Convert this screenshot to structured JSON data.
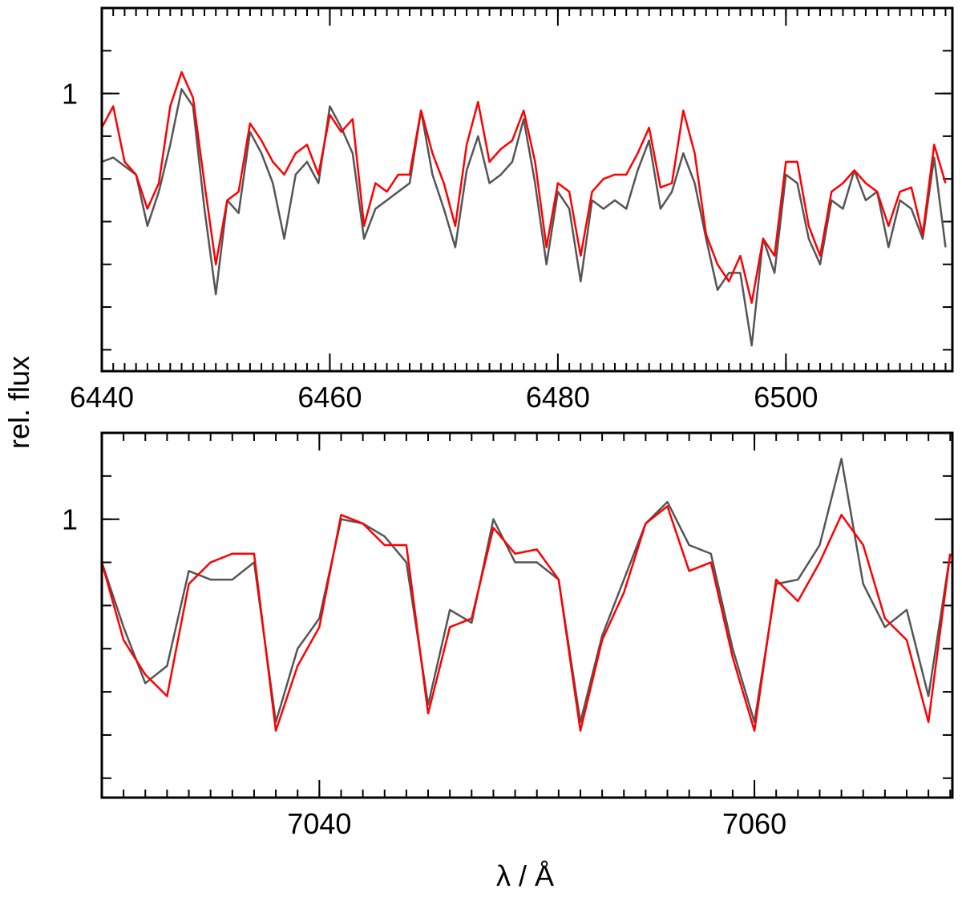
{
  "chart_data": [
    {
      "type": "line",
      "ylabel": "rel. flux",
      "x": [
        6440,
        6441,
        6442,
        6443,
        6444,
        6445,
        6446,
        6447,
        6448,
        6449,
        6450,
        6451,
        6452,
        6453,
        6454,
        6455,
        6456,
        6457,
        6458,
        6459,
        6460,
        6461,
        6462,
        6463,
        6464,
        6465,
        6466,
        6467,
        6468,
        6469,
        6470,
        6471,
        6472,
        6473,
        6474,
        6475,
        6476,
        6477,
        6478,
        6479,
        6480,
        6481,
        6482,
        6483,
        6484,
        6485,
        6486,
        6487,
        6488,
        6489,
        6490,
        6491,
        6492,
        6493,
        6494,
        6495,
        6496,
        6497,
        6498,
        6499,
        6500,
        6501,
        6502,
        6503,
        6504,
        6505,
        6506,
        6507,
        6508,
        6509,
        6510,
        6511,
        6512,
        6513,
        6514
      ],
      "series": [
        {
          "color": "#555555",
          "values": [
            0.84,
            0.85,
            0.83,
            0.81,
            0.69,
            0.77,
            0.88,
            1.01,
            0.97,
            0.73,
            0.53,
            0.75,
            0.72,
            0.91,
            0.86,
            0.79,
            0.66,
            0.81,
            0.84,
            0.79,
            0.97,
            0.92,
            0.86,
            0.66,
            0.73,
            0.75,
            0.77,
            0.79,
            0.96,
            0.81,
            0.73,
            0.64,
            0.82,
            0.9,
            0.79,
            0.81,
            0.84,
            0.94,
            0.79,
            0.6,
            0.77,
            0.73,
            0.56,
            0.75,
            0.73,
            0.75,
            0.73,
            0.82,
            0.89,
            0.73,
            0.77,
            0.86,
            0.79,
            0.66,
            0.54,
            0.58,
            0.58,
            0.41,
            0.66,
            0.58,
            0.81,
            0.79,
            0.66,
            0.6,
            0.75,
            0.73,
            0.82,
            0.75,
            0.77,
            0.64,
            0.75,
            0.73,
            0.66,
            0.85,
            0.64
          ]
        },
        {
          "color": "#ff0000",
          "values": [
            0.92,
            0.97,
            0.84,
            0.81,
            0.73,
            0.79,
            0.97,
            1.05,
            0.99,
            0.79,
            0.6,
            0.75,
            0.77,
            0.93,
            0.89,
            0.84,
            0.81,
            0.86,
            0.88,
            0.81,
            0.95,
            0.91,
            0.94,
            0.69,
            0.79,
            0.77,
            0.81,
            0.81,
            0.96,
            0.86,
            0.79,
            0.69,
            0.88,
            0.98,
            0.84,
            0.87,
            0.89,
            0.96,
            0.84,
            0.64,
            0.79,
            0.77,
            0.62,
            0.77,
            0.8,
            0.81,
            0.81,
            0.86,
            0.92,
            0.78,
            0.79,
            0.96,
            0.86,
            0.67,
            0.6,
            0.56,
            0.62,
            0.51,
            0.66,
            0.62,
            0.84,
            0.84,
            0.69,
            0.62,
            0.77,
            0.79,
            0.82,
            0.79,
            0.77,
            0.69,
            0.77,
            0.78,
            0.67,
            0.88,
            0.79
          ]
        }
      ],
      "xlim": [
        6440,
        6514.6
      ],
      "ylim": [
        0.35,
        1.2
      ],
      "xticks": [
        6440,
        6460,
        6480,
        6500
      ],
      "yticks": [
        1
      ],
      "minor_tick_step": {
        "x": 1,
        "y": 0.1
      }
    },
    {
      "type": "line",
      "xlabel": "λ / Å",
      "x": [
        7030,
        7031,
        7032,
        7033,
        7034,
        7035,
        7036,
        7037,
        7038,
        7039,
        7040,
        7041,
        7042,
        7043,
        7044,
        7045,
        7046,
        7047,
        7048,
        7049,
        7050,
        7051,
        7052,
        7053,
        7054,
        7055,
        7056,
        7057,
        7058,
        7059,
        7060,
        7061,
        7062,
        7063,
        7064,
        7065,
        7066,
        7067,
        7068,
        7069
      ],
      "series": [
        {
          "color": "#555555",
          "values": [
            0.9,
            0.75,
            0.62,
            0.66,
            0.88,
            0.86,
            0.86,
            0.9,
            0.53,
            0.7,
            0.77,
            1.0,
            0.99,
            0.96,
            0.9,
            0.57,
            0.79,
            0.76,
            1.0,
            0.9,
            0.9,
            0.86,
            0.53,
            0.73,
            0.86,
            0.99,
            1.04,
            0.94,
            0.92,
            0.7,
            0.53,
            0.85,
            0.86,
            0.94,
            1.14,
            0.85,
            0.75,
            0.79,
            0.59,
            0.92
          ]
        },
        {
          "color": "#ff0000",
          "values": [
            0.9,
            0.72,
            0.64,
            0.59,
            0.85,
            0.9,
            0.92,
            0.92,
            0.51,
            0.66,
            0.75,
            1.01,
            0.99,
            0.94,
            0.94,
            0.55,
            0.75,
            0.77,
            0.98,
            0.92,
            0.93,
            0.86,
            0.51,
            0.72,
            0.83,
            0.99,
            1.03,
            0.88,
            0.9,
            0.68,
            0.51,
            0.86,
            0.81,
            0.9,
            1.01,
            0.94,
            0.77,
            0.72,
            0.53,
            0.92
          ]
        }
      ],
      "xlim": [
        7030,
        7069.1
      ],
      "ylim": [
        0.355,
        1.2
      ],
      "xticks": [
        7040,
        7060
      ],
      "yticks": [
        1
      ],
      "minor_tick_step": {
        "x": 1,
        "y": 0.1
      }
    }
  ]
}
